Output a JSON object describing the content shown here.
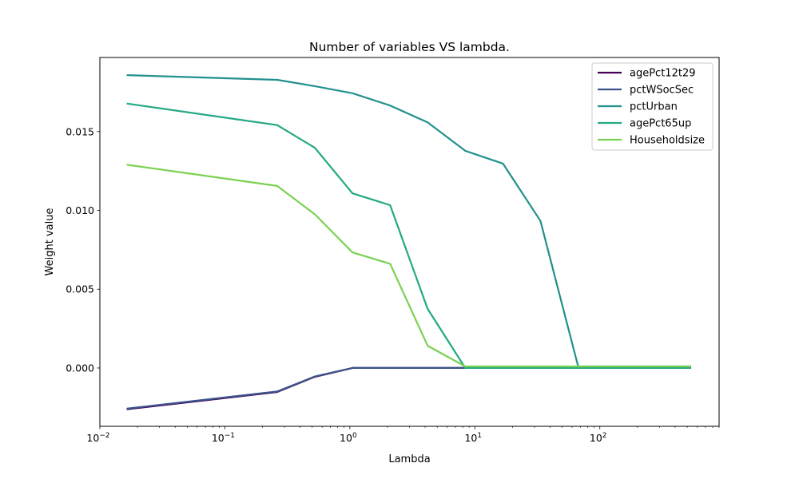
{
  "chart_data": {
    "type": "line",
    "title": "Number of variables VS lambda.",
    "xlabel": "Lambda",
    "ylabel": "Weight value",
    "xscale": "log",
    "xlim": [
      0.01,
      900
    ],
    "ylim": [
      -0.0037,
      0.0197
    ],
    "xticks": [
      {
        "value": 0.01,
        "base": "10",
        "exp": "−2"
      },
      {
        "value": 0.1,
        "base": "10",
        "exp": "−1"
      },
      {
        "value": 1,
        "base": "10",
        "exp": "0"
      },
      {
        "value": 10,
        "base": "10",
        "exp": "1"
      },
      {
        "value": 100,
        "base": "10",
        "exp": "2"
      }
    ],
    "yticks": [
      {
        "value": 0.0,
        "label": "0.000"
      },
      {
        "value": 0.005,
        "label": "0.005"
      },
      {
        "value": 0.01,
        "label": "0.010"
      },
      {
        "value": 0.015,
        "label": "0.015"
      }
    ],
    "grid": false,
    "legend_position": "top-right",
    "x": [
      0.0164,
      0.262,
      0.524,
      1.05,
      2.1,
      4.19,
      8.38,
      16.8,
      33.5,
      67.1,
      537
    ],
    "series": [
      {
        "name": "agePct12t29",
        "color": "#440154",
        "values": [
          -0.00262,
          -0.00152,
          -0.00056,
          0.0,
          0.0,
          0.0,
          0.0,
          0.0,
          0.0,
          0.0,
          0.0
        ]
      },
      {
        "name": "pctWSocSec",
        "color": "#3b528b",
        "values": [
          -0.00258,
          -0.00149,
          -0.00054,
          0.0,
          0.0,
          0.0,
          0.0,
          0.0,
          0.0,
          0.0,
          0.0
        ]
      },
      {
        "name": "pctUrban",
        "color": "#21918c",
        "values": [
          0.01858,
          0.01828,
          0.01788,
          0.01743,
          0.01665,
          0.01558,
          0.01378,
          0.01297,
          0.00933,
          0.0001,
          0.0001
        ]
      },
      {
        "name": "agePct65up",
        "color": "#22a884",
        "values": [
          0.01678,
          0.01541,
          0.01397,
          0.01108,
          0.01033,
          0.00375,
          0.0,
          0.0,
          0.0,
          0.0,
          0.0
        ]
      },
      {
        "name": "Householdsize",
        "color": "#7ad151",
        "values": [
          0.0129,
          0.01155,
          0.00975,
          0.00733,
          0.00661,
          0.00141,
          0.0001,
          0.0001,
          0.0001,
          0.0001,
          0.0001
        ]
      }
    ]
  }
}
